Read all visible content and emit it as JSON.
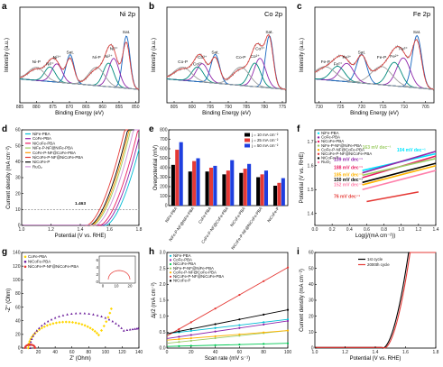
{
  "figure": {
    "panels": [
      "a",
      "b",
      "c",
      "d",
      "e",
      "f",
      "g",
      "h",
      "i"
    ]
  },
  "chart_data": [
    {
      "id": "a",
      "type": "line",
      "title": "Ni 2p",
      "xlabel": "Binding Energy (eV)",
      "ylabel": "Intensity (a.u.)",
      "x_ticks": [
        "885",
        "880",
        "875",
        "870",
        "865",
        "860",
        "855",
        "850"
      ],
      "xlim": [
        885,
        849
      ],
      "reversed_x": true,
      "annotations": [
        "Sat.",
        "Ni³⁺",
        "Ni²⁺",
        "Ni-P",
        "Sat.",
        "Ni³⁺",
        "Ni²⁺",
        "Ni-P"
      ],
      "peaks": [
        {
          "label": "Ni-P",
          "center": 852.8,
          "color": "#1565c0"
        },
        {
          "label": "Ni²⁺",
          "center": 856.6,
          "color": "#8e24aa"
        },
        {
          "label": "Ni³⁺",
          "center": 858.2,
          "color": "#00897b"
        },
        {
          "label": "Sat.",
          "center": 861.8,
          "color": "#9e9e9e"
        },
        {
          "label": "Ni-P",
          "center": 869.8,
          "color": "#1565c0"
        },
        {
          "label": "Ni²⁺",
          "center": 873.8,
          "color": "#8e24aa"
        },
        {
          "label": "Ni³⁺",
          "center": 875.9,
          "color": "#00897b"
        },
        {
          "label": "Sat.",
          "center": 880.0,
          "color": "#9e9e9e"
        }
      ]
    },
    {
      "id": "b",
      "type": "line",
      "title": "Co 2p",
      "xlabel": "Binding Energy (eV)",
      "ylabel": "Intensity (a.u.)",
      "x_ticks": [
        "805",
        "800",
        "795",
        "790",
        "785",
        "780",
        "775"
      ],
      "xlim": [
        807,
        774
      ],
      "reversed_x": true,
      "annotations": [
        "Sat.",
        "Co³⁺",
        "Co²⁺",
        "Co-P",
        "Sat.",
        "Co³⁺",
        "Co²⁺",
        "Co-P"
      ],
      "peaks": [
        {
          "label": "Co-P",
          "center": 778.6,
          "color": "#1565c0"
        },
        {
          "label": "Co²⁺",
          "center": 781.2,
          "color": "#8e24aa"
        },
        {
          "label": "Co³⁺",
          "center": 782.6,
          "color": "#00897b"
        },
        {
          "label": "Sat.",
          "center": 786.5,
          "color": "#9e9e9e"
        },
        {
          "label": "Co-P",
          "center": 793.6,
          "color": "#1565c0"
        },
        {
          "label": "Co²⁺",
          "center": 797.2,
          "color": "#8e24aa"
        },
        {
          "label": "Co³⁺",
          "center": 798.5,
          "color": "#00897b"
        },
        {
          "label": "Sat.",
          "center": 802.6,
          "color": "#9e9e9e"
        }
      ]
    },
    {
      "id": "c",
      "type": "line",
      "title": "Fe 2p",
      "xlabel": "Binding Energy (eV)",
      "ylabel": "Intensity (a.u.)",
      "x_ticks": [
        "730",
        "725",
        "720",
        "715",
        "710",
        "705"
      ],
      "xlim": [
        731,
        703
      ],
      "reversed_x": true,
      "annotations": [
        "Sat.",
        "Fe³⁺",
        "Fe²⁺",
        "Fe-P",
        "Sat.",
        "Fe³⁺",
        "Fe²⁺",
        "Fe-P"
      ],
      "peaks": [
        {
          "label": "Fe-P",
          "center": 707.0,
          "color": "#1565c0"
        },
        {
          "label": "Fe²⁺",
          "center": 710.2,
          "color": "#8e24aa"
        },
        {
          "label": "Fe³⁺",
          "center": 712.3,
          "color": "#00897b"
        },
        {
          "label": "Sat.",
          "center": 715.3,
          "color": "#9e9e9e"
        },
        {
          "label": "Fe-P",
          "center": 720.0,
          "color": "#1565c0"
        },
        {
          "label": "Fe²⁺",
          "center": 723.5,
          "color": "#8e24aa"
        },
        {
          "label": "Fe³⁺",
          "center": 725.6,
          "color": "#00897b"
        },
        {
          "label": "Sat.",
          "center": 728.5,
          "color": "#9e9e9e"
        }
      ]
    },
    {
      "id": "d",
      "type": "line",
      "xlabel": "Potential (V vs. RHE)",
      "ylabel": "Current density (mA cm⁻²)",
      "xlim": [
        1.0,
        1.8
      ],
      "ylim": [
        0,
        60
      ],
      "x_ticks": [
        "1.0",
        "1.2",
        "1.4",
        "1.6",
        "1.8"
      ],
      "y_ticks": [
        "0",
        "10",
        "20",
        "30",
        "40",
        "50",
        "60"
      ],
      "annotation": "1.463",
      "reference_line_y": 10,
      "series": [
        {
          "name": "NiFe-PBA",
          "color": "#00bcd4",
          "onset": 1.57
        },
        {
          "name": "CoFe-PBA",
          "color": "#8e24aa",
          "onset": 1.55
        },
        {
          "name": "NiCoFe-PBA",
          "color": "#e91e63",
          "onset": 1.53
        },
        {
          "name": "NiFe-P-NF@NiFe-PBA",
          "color": "#9ccc65",
          "onset": 1.48
        },
        {
          "name": "CoFe-P-NF@CoFe-PBA",
          "color": "#ff9800",
          "onset": 1.47
        },
        {
          "name": "NiCoFe-P-NF@NiCoFe-PBA",
          "color": "#e53935",
          "onset": 1.44
        },
        {
          "name": "NiCoFe-P",
          "color": "#000000",
          "onset": 1.46
        },
        {
          "name": "RuO₂",
          "color": "#ce93d8",
          "onset": 1.5
        }
      ]
    },
    {
      "id": "e",
      "type": "bar",
      "ylabel": "Overpotential (mV)",
      "ylim": [
        0,
        800
      ],
      "y_ticks": [
        "0",
        "100",
        "200",
        "300",
        "400",
        "500",
        "600",
        "700",
        "800"
      ],
      "categories": [
        "NiFe-PBA",
        "NiFe-P-NF@NiFe-PBA",
        "CoFe-PBA",
        "CoFe-P-NF@CoFe-PBA",
        "NiCoFe-PBA",
        "NiCoFe-P-NF@NiCoFe-PBA",
        "NiCoFe-P"
      ],
      "series": [
        {
          "name": "j = 10 mA cm⁻²",
          "color": "#000000",
          "values": [
            430,
            360,
            360,
            330,
            345,
            300,
            210
          ]
        },
        {
          "name": "j = 25 mA cm⁻²",
          "color": "#e53935",
          "values": [
            590,
            470,
            400,
            370,
            390,
            330,
            240
          ]
        },
        {
          "name": "j = 50 mA cm⁻²",
          "color": "#1e3fe0",
          "values": [
            670,
            500,
            420,
            480,
            440,
            370,
            290
          ]
        }
      ]
    },
    {
      "id": "f",
      "type": "line",
      "xlabel": "Log(j/(mA cm⁻²))",
      "ylabel": "Potential (V vs. RHE)",
      "xlim": [
        0.0,
        1.4
      ],
      "ylim": [
        1.35,
        1.75
      ],
      "x_ticks": [
        "0.0",
        "0.2",
        "0.4",
        "0.6",
        "0.8",
        "1.0",
        "1.2",
        "1.4"
      ],
      "y_ticks": [
        "1.4",
        "1.5",
        "1.6",
        "1.7"
      ],
      "series": [
        {
          "name": "NiFe-PBA",
          "color": "#00e5ff",
          "tafel": "104 mV dec⁻¹"
        },
        {
          "name": "CoFe-PBA",
          "color": "#8e24aa",
          "tafel": "139 mV dec⁻¹"
        },
        {
          "name": "NiCoFe-PBA",
          "color": "#e91e63",
          "tafel": "188 mV dec⁻¹"
        },
        {
          "name": "NiFe-P-NF@NiFe-PBA",
          "color": "#9ccc65",
          "tafel": "163 mV dec⁻¹"
        },
        {
          "name": "CoFe-P-NF@CoFe-PBA",
          "color": "#ffb300",
          "tafel": "185 mV dec⁻¹"
        },
        {
          "name": "NiCoFe-P-NF@NiCoFe-PBA",
          "color": "#e53935",
          "tafel": "76 mV dec⁻¹"
        },
        {
          "name": "NiCoFe-P",
          "color": "#000000",
          "tafel": "150 mV dec⁻¹"
        },
        {
          "name": "RuO₂",
          "color": "#ff80ab",
          "tafel": "152 mV dec⁻¹"
        }
      ]
    },
    {
      "id": "g",
      "type": "scatter",
      "xlabel": "Z' (Ohm)",
      "ylabel": "-Z'' (Ohm)",
      "xlim": [
        0,
        140
      ],
      "ylim": [
        0,
        140
      ],
      "x_ticks": [
        "0",
        "20",
        "40",
        "60",
        "80",
        "100",
        "120",
        "140"
      ],
      "y_ticks": [
        "0",
        "20",
        "40",
        "60",
        "80",
        "100",
        "120",
        "140"
      ],
      "inset": {
        "xlabel": "Z' (Ohm)",
        "ylabel": "-Z'' (Ohm)",
        "x_ticks": [
          "0",
          "10",
          "20"
        ],
        "y_ticks": [
          "0",
          "2",
          "4",
          "6"
        ]
      },
      "series": [
        {
          "name": "CoFe-PBA",
          "color": "#ffd600",
          "marker": "diamond"
        },
        {
          "name": "NiCoFe-PBA",
          "color": "#6a1b9a",
          "marker": "triangle"
        },
        {
          "name": "NiCoFe-P-NF@NiCoFe-PBA",
          "color": "#e53935",
          "marker": "circle"
        }
      ]
    },
    {
      "id": "h",
      "type": "scatter",
      "xlabel": "Scan rate (mV s⁻¹)",
      "ylabel": "Δj/2 (mA cm⁻²)",
      "xlim": [
        0,
        100
      ],
      "ylim": [
        0,
        3.0
      ],
      "x_ticks": [
        "0",
        "20",
        "40",
        "60",
        "80",
        "100"
      ],
      "y_ticks": [
        "0.0",
        "0.5",
        "1.0",
        "1.5",
        "2.0",
        "2.5",
        "3.0"
      ],
      "series": [
        {
          "name": "NiFe-PBA",
          "color": "#00bcd4",
          "intercept": 0.45,
          "slope": 0.0045
        },
        {
          "name": "CoFe-PBA",
          "color": "#8e24aa",
          "intercept": 0.3,
          "slope": 0.0055
        },
        {
          "name": "NiCoFe-PBA",
          "color": "#00c853",
          "intercept": 0.05,
          "slope": 0.001
        },
        {
          "name": "NiFe-P-NF@NiFe-PBA",
          "color": "#9ccc65",
          "intercept": 0.15,
          "slope": 0.004
        },
        {
          "name": "CoFe-P-NF@CoFe-PBA",
          "color": "#ffb300",
          "intercept": 0.25,
          "slope": 0.003
        },
        {
          "name": "NiCoFe-P-NF@NiCoFe-PBA",
          "color": "#e53935",
          "intercept": 0.38,
          "slope": 0.0215
        },
        {
          "name": "NiCoFe-P",
          "color": "#000000",
          "intercept": 0.45,
          "slope": 0.0075
        }
      ]
    },
    {
      "id": "i",
      "type": "line",
      "xlabel": "Potential (V vs. RHE)",
      "ylabel": "Current density (mA cm⁻²)",
      "xlim": [
        1.0,
        1.8
      ],
      "ylim": [
        0,
        60
      ],
      "x_ticks": [
        "1.0",
        "1.2",
        "1.4",
        "1.6",
        "1.8"
      ],
      "y_ticks": [
        "0",
        "10",
        "20",
        "30",
        "40",
        "50",
        "60"
      ],
      "series": [
        {
          "name": "1st cycle",
          "color": "#000000",
          "onset": 1.45
        },
        {
          "name": "2000th cycle",
          "color": "#e53935",
          "onset": 1.46
        }
      ]
    }
  ]
}
